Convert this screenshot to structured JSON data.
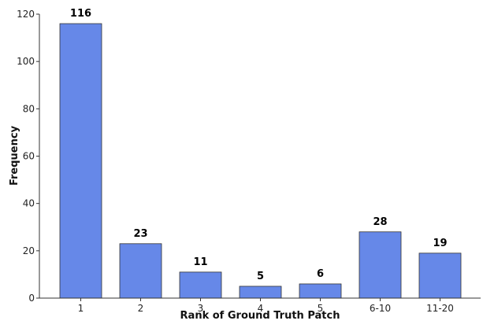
{
  "chart_data": {
    "type": "bar",
    "categories": [
      "1",
      "2",
      "3",
      "4",
      "5",
      "6-10",
      "11-20"
    ],
    "values": [
      116,
      23,
      11,
      5,
      6,
      28,
      19
    ],
    "data_labels": [
      "116",
      "23",
      "11",
      "5",
      "6",
      "28",
      "19"
    ],
    "title": "",
    "xlabel": "Rank of Ground Truth Patch",
    "ylabel": "Frequency",
    "ylim": [
      0,
      120
    ],
    "yticks": [
      0,
      20,
      40,
      60,
      80,
      100,
      120
    ],
    "ytick_labels": [
      "0",
      "20",
      "40",
      "60",
      "80",
      "100",
      "120"
    ],
    "grid": false,
    "legend": "none",
    "colors": {
      "bar": "#6688e8",
      "bar_edge": "#333333"
    }
  }
}
